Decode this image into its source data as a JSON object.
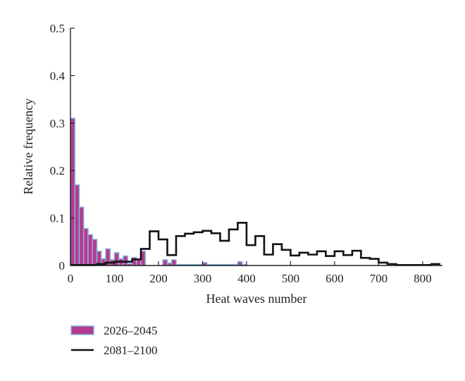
{
  "chart_data": {
    "type": "bar",
    "title": "",
    "xlabel": "Heat waves number",
    "ylabel": "Relative frequency",
    "xlim": [
      0,
      845
    ],
    "ylim": [
      0,
      0.5
    ],
    "xticks": [
      0,
      100,
      200,
      300,
      400,
      500,
      600,
      700,
      800
    ],
    "yticks": [
      0,
      0.1,
      0.2,
      0.3,
      0.4,
      0.5
    ],
    "ytick_labels": [
      "0",
      "0.1",
      "0.2",
      "0.3",
      "0.4",
      "0.5"
    ],
    "grid": false,
    "legend_position": "bottom-left",
    "series": [
      {
        "name": "2026–2045",
        "style": "filled-bars",
        "fill_color": "#b8398f",
        "edge_color": "#7fb6d6",
        "bin_width": 10,
        "x": [
          0,
          10,
          20,
          30,
          40,
          50,
          60,
          70,
          80,
          90,
          100,
          110,
          120,
          130,
          140,
          150,
          160,
          170,
          180,
          190,
          200,
          210,
          220,
          230,
          240,
          250,
          260,
          270,
          280,
          290,
          300,
          310,
          320,
          330,
          340,
          350,
          360,
          370,
          380,
          390
        ],
        "values": [
          0.31,
          0.17,
          0.123,
          0.078,
          0.065,
          0.055,
          0.03,
          0.014,
          0.035,
          0.012,
          0.027,
          0.014,
          0.02,
          0.004,
          0.017,
          0.013,
          0.03,
          0,
          0,
          0,
          0,
          0.012,
          0.005,
          0.012,
          0.002,
          0.002,
          0.002,
          0.002,
          0.002,
          0.002,
          0.006,
          0.002,
          0.002,
          0.002,
          0.002,
          0.002,
          0.002,
          0.002,
          0.008,
          0.002
        ]
      },
      {
        "name": "2081–2100",
        "style": "step-outline",
        "line_color": "#111111",
        "bin_width": 20,
        "x": [
          0,
          20,
          40,
          60,
          80,
          100,
          120,
          140,
          160,
          180,
          200,
          220,
          240,
          260,
          280,
          300,
          320,
          340,
          360,
          380,
          400,
          420,
          440,
          460,
          480,
          500,
          520,
          540,
          560,
          580,
          600,
          620,
          640,
          660,
          680,
          700,
          720,
          740,
          760,
          780,
          800,
          820
        ],
        "values": [
          0.001,
          0.001,
          0.001,
          0.003,
          0.006,
          0.008,
          0.008,
          0.013,
          0.035,
          0.072,
          0.055,
          0.022,
          0.062,
          0.067,
          0.07,
          0.073,
          0.068,
          0.052,
          0.076,
          0.09,
          0.043,
          0.062,
          0.023,
          0.045,
          0.033,
          0.021,
          0.027,
          0.023,
          0.03,
          0.02,
          0.03,
          0.022,
          0.031,
          0.016,
          0.014,
          0.006,
          0.003,
          0.001,
          0.001,
          0.001,
          0.001,
          0.003
        ]
      }
    ]
  }
}
